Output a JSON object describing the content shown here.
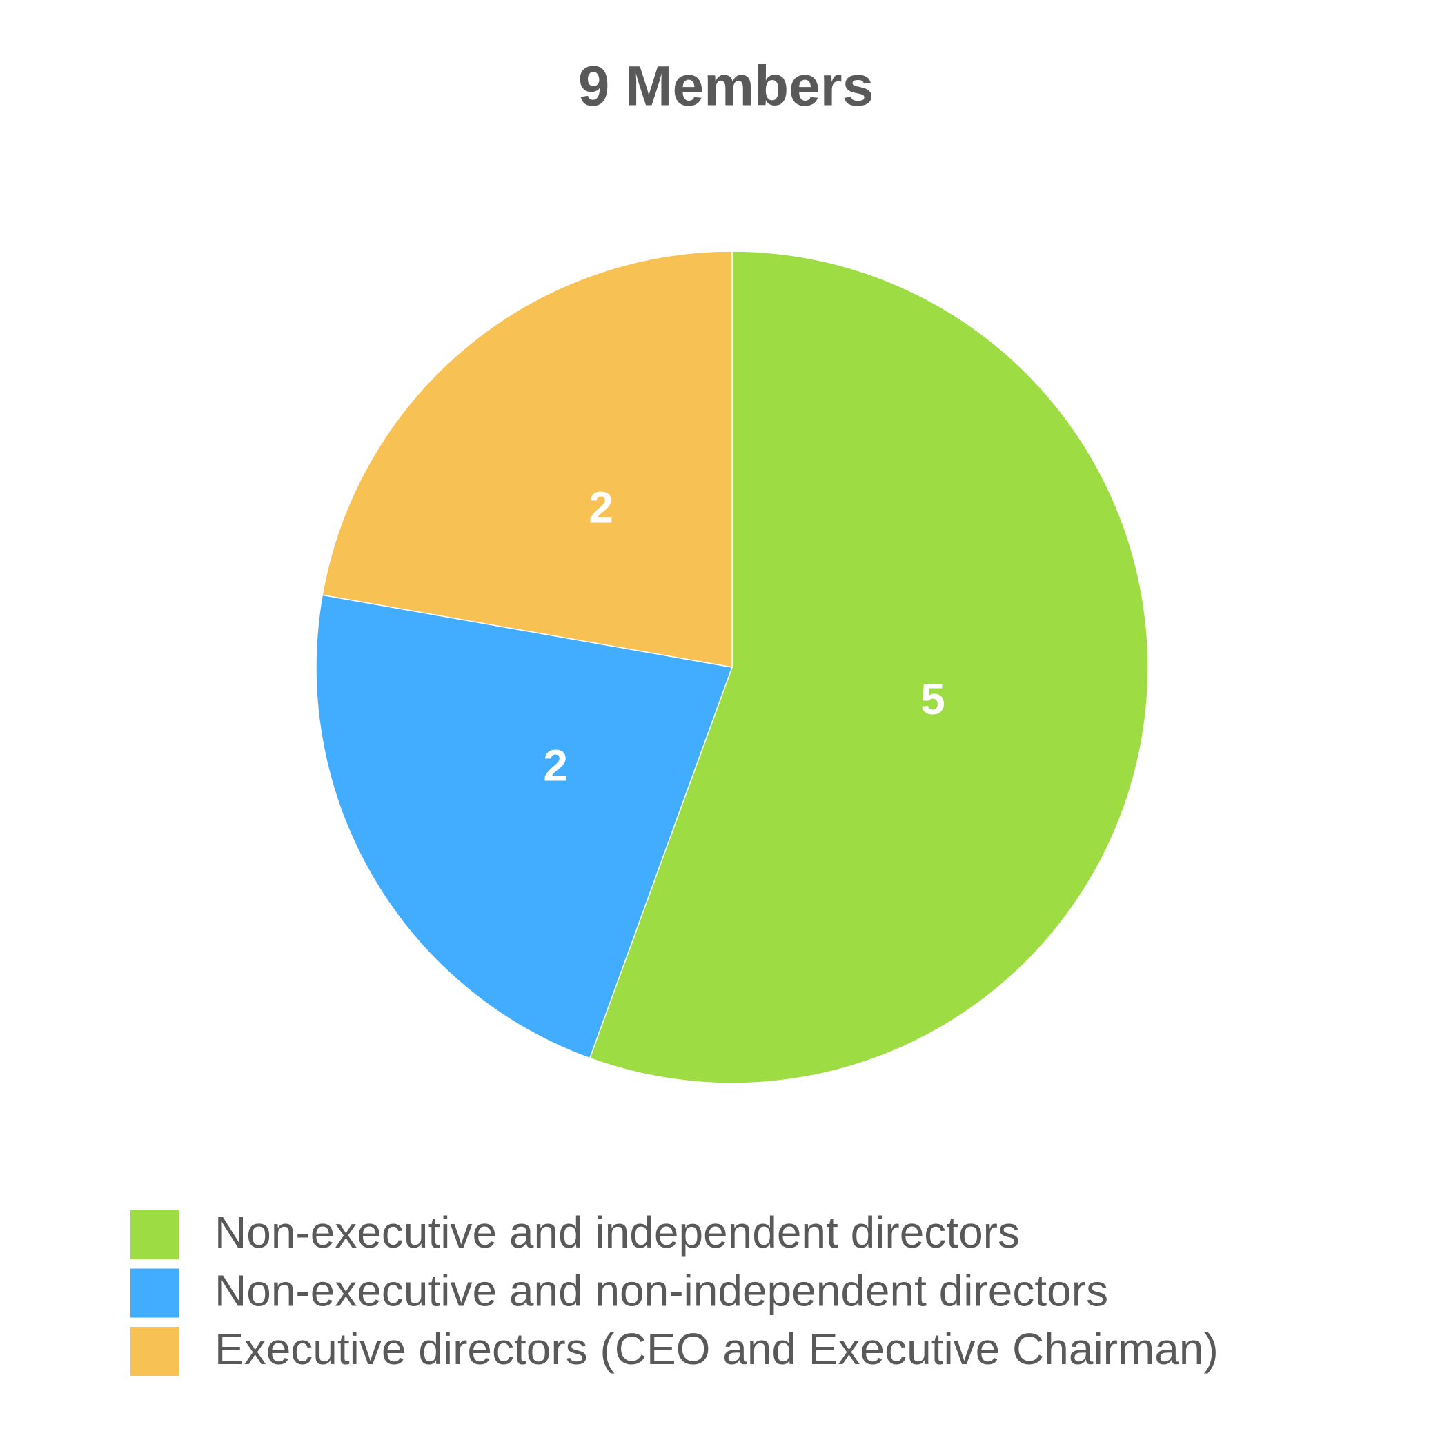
{
  "chart_data": {
    "type": "pie",
    "title": "9 Members",
    "categories": [
      "Non-executive and independent directors",
      "Non-executive and non-independent directors",
      "Executive directors (CEO and Executive Chairman)"
    ],
    "values": [
      5,
      2,
      2
    ],
    "colors": [
      "#9edc44",
      "#42adfe",
      "#f8c153"
    ]
  }
}
